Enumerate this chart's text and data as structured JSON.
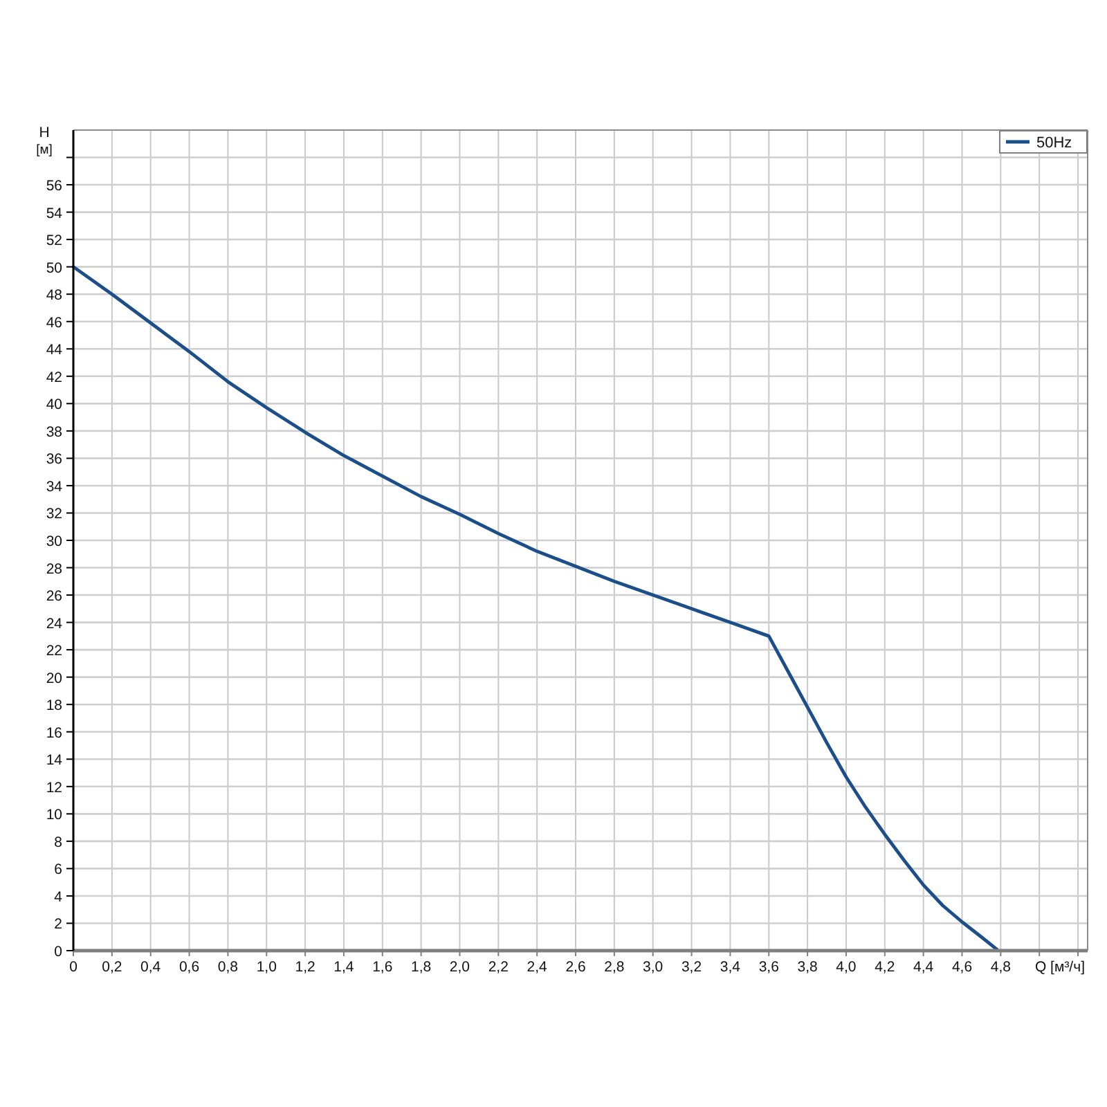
{
  "chart_data": {
    "type": "line",
    "xlabel": "Q [м³/ч]",
    "ylabel": "H [м]",
    "xlim": [
      0,
      5.25
    ],
    "ylim": [
      0,
      60
    ],
    "xticks": [
      0,
      {
        "value": 0.2,
        "label": "0,2"
      },
      {
        "value": 0.4,
        "label": "0,4"
      },
      {
        "value": 0.6,
        "label": "0,6"
      },
      {
        "value": 0.8,
        "label": "0,8"
      },
      {
        "value": 1.0,
        "label": "1,0"
      },
      {
        "value": 1.2,
        "label": "1,2"
      },
      {
        "value": 1.4,
        "label": "1,4"
      },
      {
        "value": 1.6,
        "label": "1,6"
      },
      {
        "value": 1.8,
        "label": "1,8"
      },
      {
        "value": 2.0,
        "label": "2,0"
      },
      {
        "value": 2.2,
        "label": "2,2"
      },
      {
        "value": 2.4,
        "label": "2,4"
      },
      {
        "value": 2.6,
        "label": "2,6"
      },
      {
        "value": 2.8,
        "label": "2,8"
      },
      {
        "value": 3.0,
        "label": "3,0"
      },
      {
        "value": 3.2,
        "label": "3,2"
      },
      {
        "value": 3.4,
        "label": "3,4"
      },
      {
        "value": 3.6,
        "label": "3,6"
      },
      {
        "value": 3.8,
        "label": "3,8"
      },
      {
        "value": 4.0,
        "label": "4,0"
      },
      {
        "value": 4.2,
        "label": "4,2"
      },
      {
        "value": 4.4,
        "label": "4,4"
      },
      {
        "value": 4.6,
        "label": "4,6"
      },
      {
        "value": 4.8,
        "label": "4,8"
      },
      {
        "value": 5.0,
        "label": null
      },
      {
        "value": 5.2,
        "label": null
      }
    ],
    "yticks": [
      0,
      2,
      4,
      6,
      8,
      10,
      12,
      14,
      16,
      18,
      20,
      22,
      24,
      26,
      28,
      30,
      32,
      34,
      36,
      38,
      40,
      42,
      44,
      46,
      48,
      50,
      52,
      54,
      56,
      {
        "value": 58,
        "label": null
      }
    ],
    "grid": true,
    "legend": "top right",
    "line_style": "solid",
    "series": [
      {
        "name": "50Hz",
        "color": "#1c4f8a",
        "x": [
          0,
          0.2,
          0.4,
          0.6,
          0.8,
          1.0,
          1.2,
          1.4,
          1.6,
          1.8,
          2.0,
          2.2,
          2.4,
          2.6,
          2.8,
          3.0,
          3.2,
          3.4,
          3.6,
          3.7,
          3.8,
          3.9,
          4.0,
          4.1,
          4.2,
          4.3,
          4.4,
          4.5,
          4.6,
          4.7,
          4.78
        ],
        "values": [
          50.0,
          48.0,
          45.9,
          43.8,
          41.6,
          39.7,
          37.9,
          36.2,
          34.7,
          33.2,
          31.9,
          30.5,
          29.2,
          28.1,
          27.0,
          26.0,
          25.0,
          24.0,
          23.0,
          20.4,
          17.8,
          15.2,
          12.7,
          10.5,
          8.5,
          6.6,
          4.8,
          3.3,
          2.1,
          1.0,
          0.1
        ]
      }
    ]
  }
}
